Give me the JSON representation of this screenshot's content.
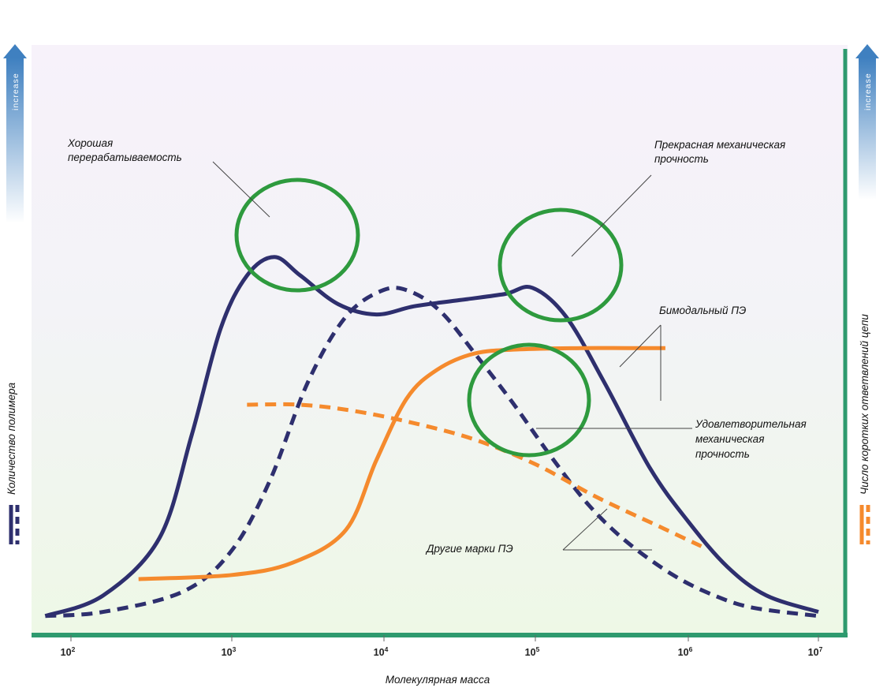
{
  "colors": {
    "series_dark": "#2e2f6e",
    "series_orange": "#f58a2d",
    "ellipse": "#2e9a3e",
    "axis": "#2e9a6e",
    "arrow": "#3f80c0"
  },
  "chart_data": {
    "type": "line",
    "x_scale": "log",
    "xlabel": "Молекулярная масса",
    "ylabel_left": "Количество полимера",
    "ylabel_right": "Число коротких ответвлений цепи",
    "axis_arrow_left": "increase",
    "axis_arrow_right": "increase",
    "x_tick_exponents": [
      2,
      3,
      4,
      5,
      6,
      7
    ],
    "x_tick_base": "10",
    "xlim_log10": [
      1.84,
      7.0
    ],
    "ylim": [
      0,
      100
    ],
    "grid": false,
    "series": [
      {
        "name": "Бимодальный ПЭ",
        "axis": "left",
        "color": "#2e2f6e",
        "style": "solid",
        "points": [
          [
            1.84,
            1
          ],
          [
            2.2,
            6
          ],
          [
            2.55,
            20
          ],
          [
            2.75,
            45
          ],
          [
            2.93,
            71
          ],
          [
            3.1,
            84
          ],
          [
            3.28,
            88.5
          ],
          [
            3.45,
            84
          ],
          [
            3.7,
            77
          ],
          [
            3.95,
            74.5
          ],
          [
            4.2,
            76.5
          ],
          [
            4.5,
            78
          ],
          [
            4.8,
            79.5
          ],
          [
            4.98,
            81
          ],
          [
            5.2,
            74
          ],
          [
            5.45,
            58
          ],
          [
            5.75,
            37
          ],
          [
            6.0,
            24
          ],
          [
            6.3,
            13
          ],
          [
            6.6,
            6
          ],
          [
            7.0,
            2
          ]
        ]
      },
      {
        "name": "Другие марки ПЭ",
        "axis": "left",
        "color": "#2e2f6e",
        "style": "dashed",
        "points": [
          [
            1.84,
            1
          ],
          [
            2.2,
            2
          ],
          [
            2.7,
            7
          ],
          [
            3.0,
            17
          ],
          [
            3.25,
            34
          ],
          [
            3.5,
            58
          ],
          [
            3.75,
            74
          ],
          [
            4.0,
            80.5
          ],
          [
            4.18,
            80
          ],
          [
            4.38,
            75
          ],
          [
            4.6,
            65
          ],
          [
            4.85,
            53
          ],
          [
            5.1,
            40
          ],
          [
            5.35,
            28
          ],
          [
            5.6,
            19
          ],
          [
            5.9,
            11
          ],
          [
            6.2,
            6
          ],
          [
            6.5,
            3
          ],
          [
            7.0,
            1
          ]
        ]
      },
      {
        "name": "Бимодальный ПЭ",
        "axis": "right",
        "color": "#f58a2d",
        "style": "solid",
        "points": [
          [
            2.42,
            10
          ],
          [
            3.0,
            11
          ],
          [
            3.4,
            14
          ],
          [
            3.75,
            22
          ],
          [
            3.95,
            39
          ],
          [
            4.15,
            54
          ],
          [
            4.35,
            61
          ],
          [
            4.6,
            65
          ],
          [
            4.9,
            66
          ],
          [
            5.3,
            66.3
          ],
          [
            5.6,
            66.3
          ],
          [
            5.85,
            66.3
          ]
        ]
      },
      {
        "name": "Другие марки ПЭ",
        "axis": "right",
        "color": "#f58a2d",
        "style": "dashed",
        "points": [
          [
            3.1,
            52.5
          ],
          [
            3.45,
            52.5
          ],
          [
            3.8,
            51
          ],
          [
            4.2,
            48
          ],
          [
            4.6,
            44
          ],
          [
            5.0,
            38
          ],
          [
            5.4,
            30
          ],
          [
            5.8,
            23
          ],
          [
            6.1,
            18
          ]
        ]
      }
    ],
    "annotations": [
      {
        "text": [
          "Хорошая",
          "перерабатываемость"
        ]
      },
      {
        "text": [
          "Прекрасная механическая",
          "прочность"
        ]
      },
      {
        "text": [
          "Бимодальный ПЭ"
        ]
      },
      {
        "text": [
          "Удовлетворительная",
          "механическая",
          "прочность"
        ]
      },
      {
        "text": [
          "Другие марки ПЭ"
        ]
      }
    ]
  }
}
